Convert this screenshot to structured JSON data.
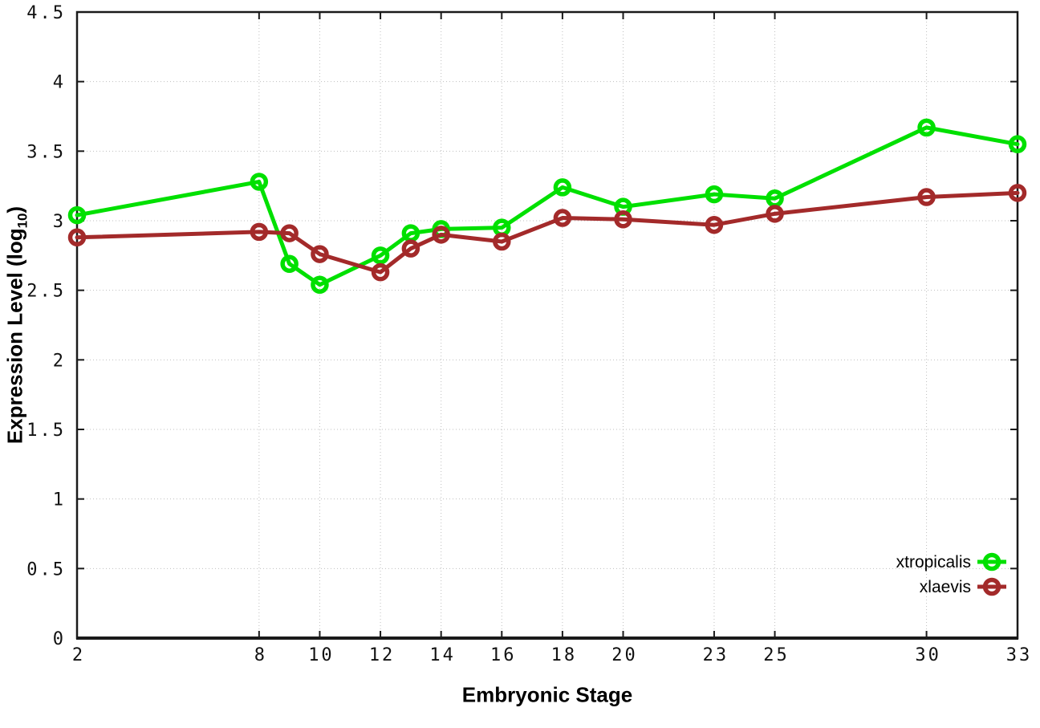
{
  "chart_data": {
    "type": "line",
    "title": "",
    "xlabel": "Embryonic Stage",
    "ylabel": "Expression Level (log10)",
    "ylabel_parts": {
      "pre": "Expression Level (log",
      "sub": "10",
      "post": ")"
    },
    "xlim": [
      2,
      33
    ],
    "ylim": [
      0,
      4.5
    ],
    "grid": true,
    "legend_position": "inside bottom-right",
    "marker": "open-circle",
    "background_color": "#ffffff",
    "x": [
      2,
      8,
      9,
      10,
      12,
      13,
      14,
      16,
      18,
      20,
      23,
      25,
      30,
      33
    ],
    "xticks": [
      {
        "value": 2,
        "label": "2"
      },
      {
        "value": 8,
        "label": "8"
      },
      {
        "value": 10,
        "label": "10"
      },
      {
        "value": 12,
        "label": "12"
      },
      {
        "value": 14,
        "label": "14"
      },
      {
        "value": 16,
        "label": "16"
      },
      {
        "value": 18,
        "label": "18"
      },
      {
        "value": 20,
        "label": "20"
      },
      {
        "value": 23,
        "label": "23"
      },
      {
        "value": 25,
        "label": "25"
      },
      {
        "value": 30,
        "label": "30"
      },
      {
        "value": 33,
        "label": "33"
      }
    ],
    "yticks": [
      {
        "value": 0,
        "label": "0"
      },
      {
        "value": 0.5,
        "label": "0.5"
      },
      {
        "value": 1,
        "label": "1"
      },
      {
        "value": 1.5,
        "label": "1.5"
      },
      {
        "value": 2,
        "label": "2"
      },
      {
        "value": 2.5,
        "label": "2.5"
      },
      {
        "value": 3,
        "label": "3"
      },
      {
        "value": 3.5,
        "label": "3.5"
      },
      {
        "value": 4,
        "label": "4"
      },
      {
        "value": 4.5,
        "label": "4.5"
      }
    ],
    "series": [
      {
        "name": "xtropicalis",
        "color": "#00e000",
        "values": [
          3.04,
          3.28,
          2.69,
          2.54,
          2.75,
          2.91,
          2.94,
          2.95,
          3.24,
          3.1,
          3.19,
          3.16,
          3.67,
          3.55
        ]
      },
      {
        "name": "xlaevis",
        "color": "#a32a2a",
        "values": [
          2.88,
          2.92,
          2.91,
          2.76,
          2.63,
          2.8,
          2.9,
          2.85,
          3.02,
          3.01,
          2.97,
          3.05,
          3.17,
          3.2
        ]
      }
    ]
  }
}
